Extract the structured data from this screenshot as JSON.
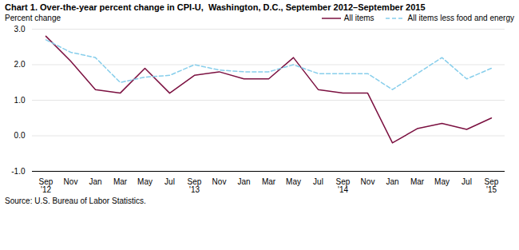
{
  "chart_data": {
    "type": "line",
    "title": "Chart 1. Over-the-year percent change in CPI-U,  Washington, D.C., September 2012–September 2015",
    "ylabel": "Percent change",
    "source": "Source: U.S. Bureau of Labor Statistics.",
    "categories": [
      "Sep\n'12",
      "Nov",
      "Jan",
      "Mar",
      "May",
      "Jul",
      "Sep\n'13",
      "Nov",
      "Jan",
      "Mar",
      "May",
      "Jul",
      "Sep\n'14",
      "Nov",
      "Jan",
      "Mar",
      "May",
      "Jul",
      "Sep\n'15"
    ],
    "series": [
      {
        "name": "All items",
        "color": "#7B1040",
        "line_style": "solid",
        "values": [
          2.8,
          2.1,
          1.3,
          1.2,
          1.9,
          1.2,
          1.7,
          1.8,
          1.6,
          1.6,
          2.2,
          1.3,
          1.2,
          1.2,
          -0.2,
          0.2,
          0.35,
          0.18,
          0.5
        ]
      },
      {
        "name": "All items less food and energy",
        "color": "#87CEEB",
        "line_style": "dashed",
        "values": [
          2.7,
          2.35,
          2.2,
          1.5,
          1.65,
          1.7,
          2.0,
          1.85,
          1.8,
          1.8,
          2.0,
          1.75,
          1.75,
          1.75,
          1.3,
          1.75,
          2.2,
          1.6,
          1.9
        ]
      }
    ],
    "ylim": [
      -1.0,
      3.0
    ],
    "yticks": [
      {
        "value": -1.0,
        "label": "-1.0"
      },
      {
        "value": 0.0,
        "label": "0.0"
      },
      {
        "value": 1.0,
        "label": "1.0"
      },
      {
        "value": 2.0,
        "label": "2.0"
      },
      {
        "value": 3.0,
        "label": "3.0"
      }
    ],
    "grid": true,
    "legend": "upper right"
  }
}
